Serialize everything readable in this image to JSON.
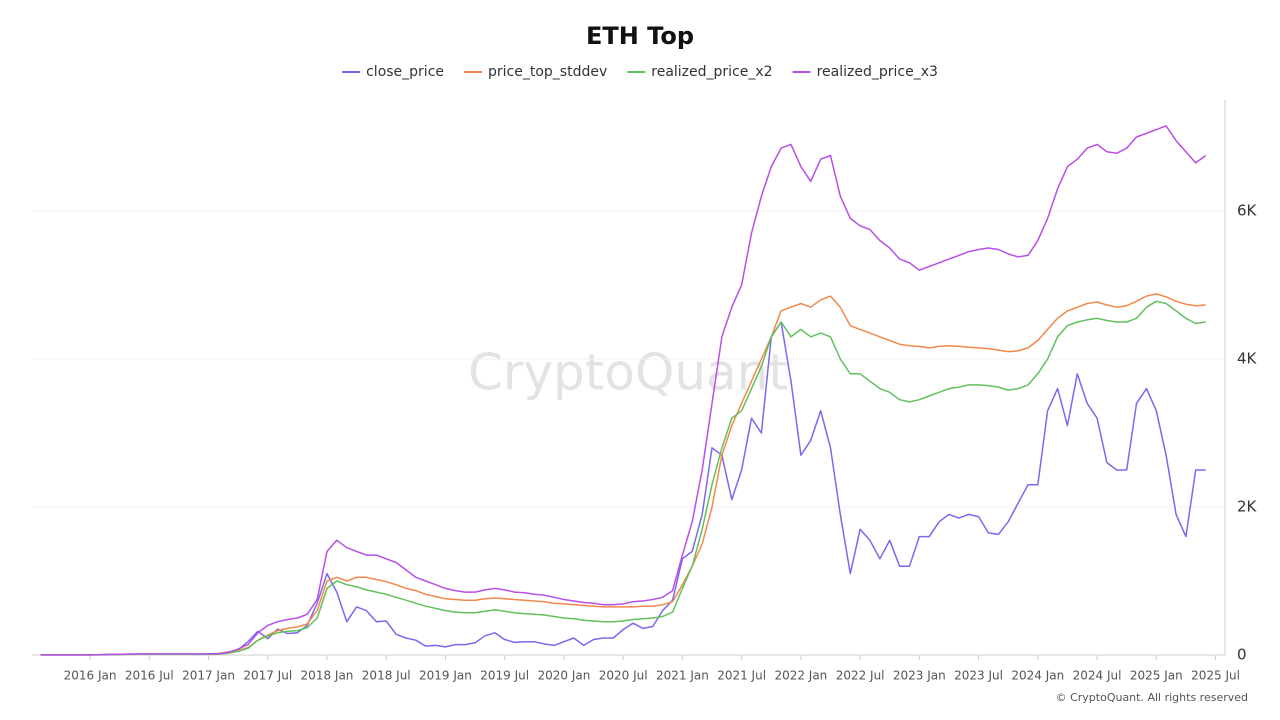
{
  "chart_data": {
    "type": "line",
    "title": "ETH Top",
    "watermark": "CryptoQuant",
    "credit": "© CryptoQuant. All rights reserved",
    "legend": "top",
    "x": [
      2015.583,
      2015.667,
      2015.75,
      2015.833,
      2015.917,
      2016,
      2016.083,
      2016.167,
      2016.25,
      2016.333,
      2016.417,
      2016.5,
      2016.583,
      2016.667,
      2016.75,
      2016.833,
      2016.917,
      2017,
      2017.083,
      2017.167,
      2017.25,
      2017.333,
      2017.417,
      2017.5,
      2017.583,
      2017.667,
      2017.75,
      2017.833,
      2017.917,
      2018,
      2018.083,
      2018.167,
      2018.25,
      2018.333,
      2018.417,
      2018.5,
      2018.583,
      2018.667,
      2018.75,
      2018.833,
      2018.917,
      2019,
      2019.083,
      2019.167,
      2019.25,
      2019.333,
      2019.417,
      2019.5,
      2019.583,
      2019.667,
      2019.75,
      2019.833,
      2019.917,
      2020,
      2020.083,
      2020.167,
      2020.25,
      2020.333,
      2020.417,
      2020.5,
      2020.583,
      2020.667,
      2020.75,
      2020.833,
      2020.917,
      2021,
      2021.083,
      2021.167,
      2021.25,
      2021.333,
      2021.417,
      2021.5,
      2021.583,
      2021.667,
      2021.75,
      2021.833,
      2021.917,
      2022,
      2022.083,
      2022.167,
      2022.25,
      2022.333,
      2022.417,
      2022.5,
      2022.583,
      2022.667,
      2022.75,
      2022.833,
      2022.917,
      2023,
      2023.083,
      2023.167,
      2023.25,
      2023.333,
      2023.417,
      2023.5,
      2023.583,
      2023.667,
      2023.75,
      2023.833,
      2023.917,
      2024,
      2024.083,
      2024.167,
      2024.25,
      2024.333,
      2024.417,
      2024.5,
      2024.583,
      2024.667,
      2024.75,
      2024.833,
      2024.917,
      2025,
      2025.083,
      2025.167,
      2025.25,
      2025.333,
      2025.417
    ],
    "series": [
      {
        "name": "close_price",
        "color": "#7b68ee",
        "values": [
          1,
          1,
          1,
          1,
          1,
          1,
          5,
          11,
          8,
          12,
          13,
          11,
          11,
          12,
          11,
          9,
          8,
          10,
          13,
          40,
          70,
          180,
          320,
          220,
          350,
          290,
          300,
          400,
          700,
          1100,
          850,
          450,
          650,
          600,
          450,
          460,
          280,
          230,
          200,
          120,
          130,
          110,
          140,
          140,
          165,
          260,
          300,
          210,
          170,
          180,
          180,
          150,
          130,
          180,
          230,
          130,
          210,
          230,
          230,
          345,
          430,
          360,
          385,
          600,
          740,
          1300,
          1400,
          1900,
          2800,
          2700,
          2100,
          2500,
          3200,
          3000,
          4300,
          4500,
          3700,
          2700,
          2900,
          3300,
          2800,
          1900,
          1100,
          1700,
          1550,
          1300,
          1550,
          1200,
          1200,
          1600,
          1600,
          1800,
          1900,
          1850,
          1900,
          1870,
          1650,
          1630,
          1800,
          2050,
          2300,
          2300,
          3300,
          3600,
          3100,
          3800,
          3400,
          3200,
          2600,
          2500,
          2500,
          3400,
          3600,
          3300,
          2700,
          1900,
          1600,
          2500,
          2500
        ]
      },
      {
        "name": "price_top_stddev",
        "color": "#f0894b",
        "values": [
          1,
          1,
          1,
          1,
          2,
          2,
          3,
          6,
          8,
          10,
          11,
          12,
          12,
          12,
          12,
          12,
          11,
          15,
          20,
          40,
          60,
          100,
          200,
          270,
          330,
          360,
          380,
          420,
          600,
          1000,
          1050,
          1000,
          1050,
          1050,
          1020,
          990,
          950,
          900,
          870,
          820,
          790,
          760,
          750,
          740,
          740,
          760,
          770,
          760,
          750,
          740,
          730,
          720,
          700,
          690,
          680,
          670,
          660,
          650,
          650,
          650,
          650,
          660,
          660,
          680,
          720,
          950,
          1200,
          1500,
          2000,
          2700,
          3100,
          3400,
          3700,
          4000,
          4300,
          4650,
          4700,
          4750,
          4700,
          4800,
          4850,
          4700,
          4450,
          4400,
          4350,
          4300,
          4250,
          4200,
          4180,
          4170,
          4150,
          4170,
          4180,
          4170,
          4160,
          4150,
          4140,
          4120,
          4100,
          4110,
          4150,
          4250,
          4400,
          4550,
          4650,
          4700,
          4750,
          4770,
          4730,
          4700,
          4720,
          4780,
          4850,
          4880,
          4840,
          4780,
          4740,
          4720,
          4730
        ]
      },
      {
        "name": "realized_price_x2",
        "color": "#61c15c",
        "values": [
          1,
          1,
          1,
          1,
          1,
          1,
          2,
          4,
          6,
          8,
          9,
          10,
          10,
          10,
          10,
          10,
          10,
          11,
          12,
          25,
          50,
          90,
          200,
          260,
          300,
          320,
          330,
          370,
          500,
          900,
          1000,
          950,
          920,
          880,
          850,
          820,
          780,
          740,
          700,
          660,
          630,
          600,
          580,
          570,
          570,
          590,
          610,
          590,
          570,
          560,
          550,
          540,
          520,
          500,
          490,
          470,
          460,
          450,
          450,
          460,
          480,
          490,
          500,
          520,
          580,
          900,
          1200,
          1700,
          2300,
          2800,
          3200,
          3300,
          3600,
          3900,
          4300,
          4500,
          4300,
          4400,
          4300,
          4350,
          4300,
          4000,
          3800,
          3800,
          3700,
          3600,
          3550,
          3450,
          3420,
          3450,
          3500,
          3550,
          3600,
          3620,
          3650,
          3650,
          3640,
          3620,
          3580,
          3600,
          3650,
          3800,
          4000,
          4300,
          4450,
          4500,
          4530,
          4550,
          4520,
          4500,
          4500,
          4550,
          4700,
          4780,
          4750,
          4650,
          4550,
          4480,
          4500
        ]
      },
      {
        "name": "realized_price_x3",
        "color": "#b84fe6",
        "values": [
          1,
          1,
          1,
          1,
          2,
          2,
          3,
          6,
          9,
          12,
          13,
          15,
          15,
          15,
          15,
          15,
          15,
          16,
          18,
          35,
          80,
          140,
          300,
          400,
          450,
          480,
          500,
          550,
          750,
          1400,
          1550,
          1450,
          1400,
          1350,
          1350,
          1300,
          1250,
          1150,
          1050,
          1000,
          950,
          900,
          870,
          850,
          850,
          880,
          900,
          880,
          850,
          840,
          820,
          810,
          780,
          750,
          730,
          710,
          700,
          680,
          680,
          690,
          720,
          730,
          750,
          780,
          870,
          1350,
          1800,
          2500,
          3400,
          4300,
          4700,
          5000,
          5700,
          6200,
          6600,
          6850,
          6900,
          6600,
          6400,
          6700,
          6750,
          6200,
          5900,
          5800,
          5750,
          5600,
          5500,
          5350,
          5300,
          5200,
          5250,
          5300,
          5350,
          5400,
          5450,
          5480,
          5500,
          5480,
          5420,
          5380,
          5400,
          5600,
          5900,
          6300,
          6600,
          6700,
          6850,
          6900,
          6800,
          6780,
          6850,
          7000,
          7050,
          7100,
          7150,
          6950,
          6800,
          6650,
          6750
        ]
      }
    ],
    "xlim": [
      2015.51,
      2025.58
    ],
    "xticks": [
      {
        "value": 2016,
        "label": "2016 Jan"
      },
      {
        "value": 2016.5,
        "label": "2016 Jul"
      },
      {
        "value": 2017,
        "label": "2017 Jan"
      },
      {
        "value": 2017.5,
        "label": "2017 Jul"
      },
      {
        "value": 2018,
        "label": "2018 Jan"
      },
      {
        "value": 2018.5,
        "label": "2018 Jul"
      },
      {
        "value": 2019,
        "label": "2019 Jan"
      },
      {
        "value": 2019.5,
        "label": "2019 Jul"
      },
      {
        "value": 2020,
        "label": "2020 Jan"
      },
      {
        "value": 2020.5,
        "label": "2020 Jul"
      },
      {
        "value": 2021,
        "label": "2021 Jan"
      },
      {
        "value": 2021.5,
        "label": "2021 Jul"
      },
      {
        "value": 2022,
        "label": "2022 Jan"
      },
      {
        "value": 2022.5,
        "label": "2022 Jul"
      },
      {
        "value": 2023,
        "label": "2023 Jan"
      },
      {
        "value": 2023.5,
        "label": "2023 Jul"
      },
      {
        "value": 2024,
        "label": "2024 Jan"
      },
      {
        "value": 2024.5,
        "label": "2024 Jul"
      },
      {
        "value": 2025,
        "label": "2025 Jan"
      },
      {
        "value": 2025.5,
        "label": "2025 Jul"
      }
    ],
    "ylim": [
      0,
      7500
    ],
    "yticks": [
      0,
      {
        "value": 2000,
        "label": "2K"
      },
      {
        "value": 4000,
        "label": "4K"
      },
      {
        "value": 6000,
        "label": "6K"
      }
    ],
    "grid": true
  }
}
